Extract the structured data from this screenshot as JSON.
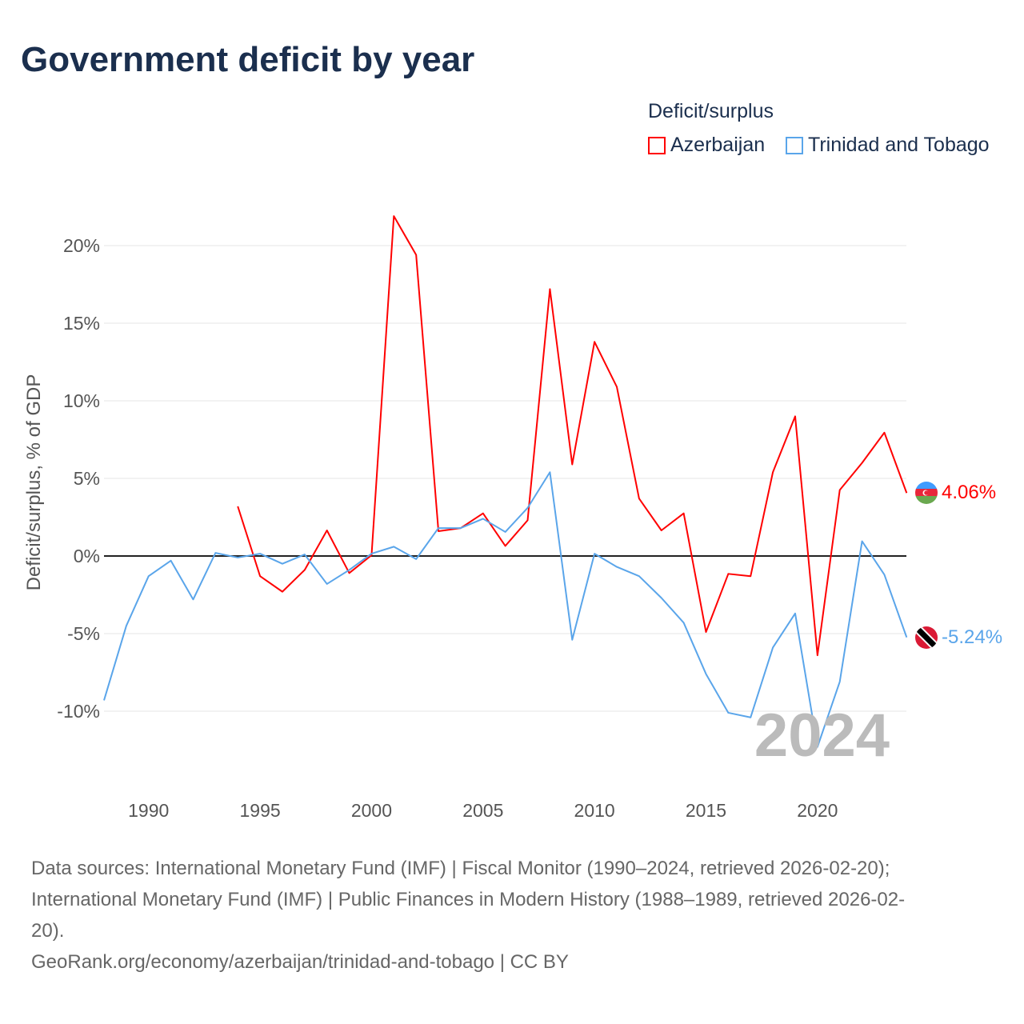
{
  "title": "Government deficit by year",
  "legend": {
    "title": "Deficit/surplus",
    "items": [
      "Azerbaijan",
      "Trinidad and Tobago"
    ]
  },
  "colors": {
    "Azerbaijan": "#ff0000",
    "Trinidad and Tobago": "#5aa5ea"
  },
  "watermark_year": "2024",
  "end_labels": {
    "Azerbaijan": "4.06%",
    "Trinidad and Tobago": "-5.24%"
  },
  "source_lines": [
    "Data sources: International Monetary Fund (IMF) | Fiscal Monitor (1990–2024, retrieved 2026-02-20);",
    "International Monetary Fund (IMF) | Public Finances in Modern History (1988–1989, retrieved 2026-02-",
    "20).",
    "GeoRank.org/economy/azerbaijan/trinidad-and-tobago | CC BY"
  ],
  "chart_data": {
    "type": "line",
    "title": "Government deficit by year",
    "xlabel": "",
    "ylabel": "Deficit/surplus, % of GDP",
    "xlim": [
      1988,
      2024
    ],
    "ylim": [
      -13.5,
      23
    ],
    "xticks": [
      1990,
      1995,
      2000,
      2005,
      2010,
      2015,
      2020
    ],
    "yticks": [
      -10,
      -5,
      0,
      5,
      10,
      15,
      20
    ],
    "ytick_labels": [
      "-10%",
      "-5%",
      "0%",
      "5%",
      "10%",
      "15%",
      "20%"
    ],
    "grid": true,
    "series": [
      {
        "name": "Azerbaijan",
        "start": 1994,
        "values": [
          3.2,
          -1.3,
          -2.3,
          -0.9,
          1.65,
          -1.1,
          0.05,
          21.9,
          19.4,
          1.6,
          1.8,
          2.75,
          0.65,
          2.3,
          17.2,
          5.9,
          13.8,
          10.9,
          3.7,
          1.65,
          2.75,
          -4.9,
          -1.15,
          -1.3,
          5.4,
          9.0,
          -6.4,
          4.25,
          6.0,
          7.95,
          4.06
        ]
      },
      {
        "name": "Trinidad and Tobago",
        "start": 1988,
        "values": [
          -9.3,
          -4.5,
          -1.3,
          -0.3,
          -2.8,
          0.2,
          -0.1,
          0.15,
          -0.5,
          0.1,
          -1.8,
          -0.9,
          0.15,
          0.6,
          -0.2,
          1.8,
          1.8,
          2.4,
          1.55,
          3.1,
          5.4,
          -5.4,
          0.15,
          -0.7,
          -1.3,
          -2.7,
          -4.3,
          -7.6,
          -10.1,
          -10.4,
          -5.9,
          -3.7,
          -12.3,
          -8.1,
          0.95,
          -1.2,
          -5.24
        ]
      }
    ]
  }
}
